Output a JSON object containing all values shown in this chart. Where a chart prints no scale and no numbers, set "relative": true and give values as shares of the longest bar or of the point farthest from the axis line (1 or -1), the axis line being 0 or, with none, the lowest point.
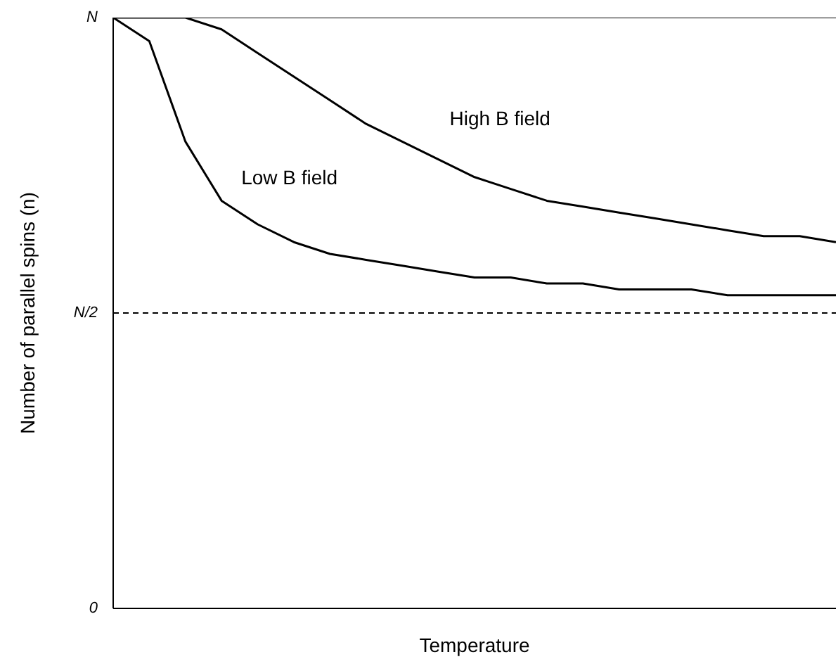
{
  "chart_data": {
    "type": "line",
    "xlabel": "Temperature",
    "ylabel": "Number of parallel spins (n)",
    "relative": true,
    "categories": [
      null,
      null,
      null,
      null,
      null,
      null,
      null,
      null,
      null,
      null,
      null,
      null,
      null,
      null,
      null,
      null,
      null,
      null,
      null,
      null,
      null
    ],
    "series": [
      {
        "name": "High B field",
        "color": "#000000",
        "values": [
          1.0,
          1.0,
          1.0,
          0.98,
          0.94,
          0.9,
          0.86,
          0.82,
          0.79,
          0.76,
          0.73,
          0.71,
          0.69,
          0.68,
          0.67,
          0.66,
          0.65,
          0.64,
          0.63,
          0.63,
          0.62
        ]
      },
      {
        "name": "Low B field",
        "color": "#000000",
        "values": [
          1.0,
          0.96,
          0.79,
          0.69,
          0.65,
          0.62,
          0.6,
          0.59,
          0.58,
          0.57,
          0.56,
          0.56,
          0.55,
          0.55,
          0.54,
          0.54,
          0.54,
          0.53,
          0.53,
          0.53,
          0.53
        ]
      }
    ],
    "ref_lines": [
      {
        "axis": "y",
        "value": 1,
        "label": "N",
        "color": "#000000",
        "line_style": "solid"
      },
      {
        "axis": "y",
        "value": 0.5,
        "label": "N/2",
        "color": "#000000",
        "line_style": "dashed"
      },
      {
        "axis": "y",
        "value": 0,
        "label": "0",
        "color": "#000000",
        "line_style": "solid"
      }
    ],
    "marker": "none",
    "line_style": "solid"
  }
}
